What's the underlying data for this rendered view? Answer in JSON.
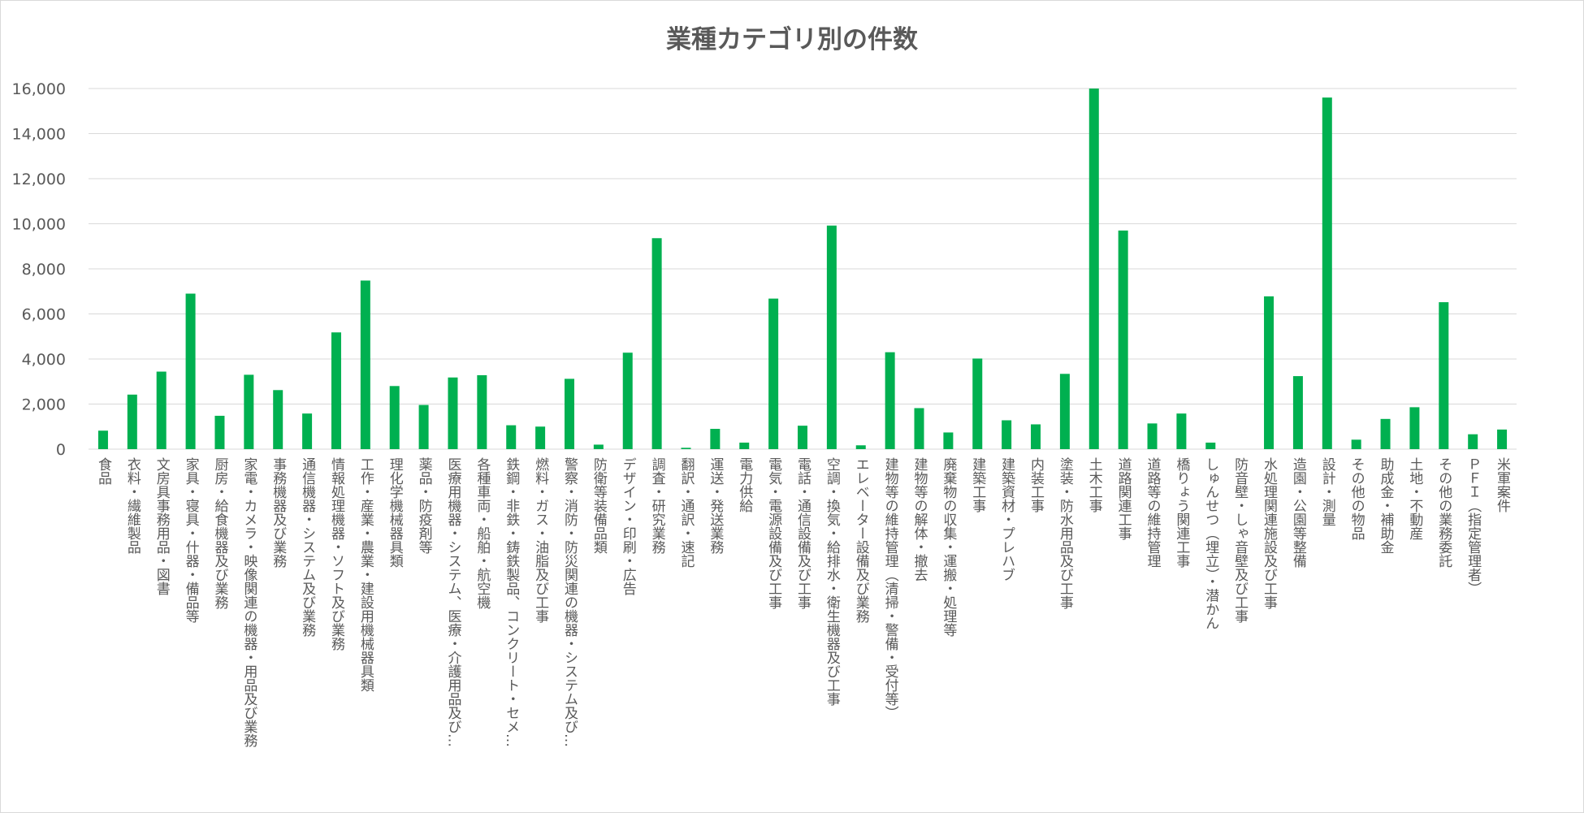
{
  "chart_data": {
    "type": "bar",
    "title": "業種カテゴリ別の件数",
    "xlabel": "",
    "ylabel": "",
    "ylim": [
      0,
      16000
    ],
    "yticks": [
      0,
      2000,
      4000,
      6000,
      8000,
      10000,
      12000,
      14000,
      16000
    ],
    "ytick_labels": [
      "0",
      "2,000",
      "4,000",
      "6,000",
      "8,000",
      "10,000",
      "12,000",
      "14,000",
      "16,000"
    ],
    "grid": true,
    "legend": "none",
    "bar_color": "#00b050",
    "categories": [
      "食品",
      "衣料・繊維製品",
      "文房具事務用品・図書",
      "家具・寝具・什器・備品等",
      "厨房・給食機器及び業務",
      "家電・カメラ・映像関連の機器・用品及び業務",
      "事務機器及び業務",
      "通信機器・システム及び業務",
      "情報処理機器・ソフト及び業務",
      "工作・産業・農業・建設用機械器具類",
      "理化学機械器具類",
      "薬品・防疫剤等",
      "医療用機器・システム、医療・介護用品及び…",
      "各種車両・船舶・航空機",
      "鉄鋼・非鉄・鋳鉄製品、コンクリート・セメ…",
      "燃料・ガス・油脂及び工事",
      "警察・消防・防災関連の機器・システム及び…",
      "防衛等装備品類",
      "デザイン・印刷・広告",
      "調査・研究業務",
      "翻訳・通訳・速記",
      "運送・発送業務",
      "電力供給",
      "電気・電源設備及び工事",
      "電話・通信設備及び工事",
      "空調・換気・給排水・衛生機器及び工事",
      "エレベーター設備及び業務",
      "建物等の維持管理（清掃・警備・受付等）",
      "建物等の解体・撤去",
      "廃棄物の収集・運搬・処理等",
      "建築工事",
      "建築資材・プレハブ",
      "内装工事",
      "塗装・防水用品及び工事",
      "土木工事",
      "道路関連工事",
      "道路等の維持管理",
      "橋りょう関連工事",
      "しゅんせつ（埋立）・潜かん",
      "防音壁・しゃ音壁及び工事",
      "水処理関連施設及び工事",
      "造園・公園等整備",
      "設計・測量",
      "その他の物品",
      "助成金・補助金",
      "土地・不動産",
      "その他の業務委託",
      "ＰＦＩ（指定管理者）",
      "米軍案件"
    ],
    "values": [
      820,
      2420,
      3440,
      6900,
      1480,
      3300,
      2620,
      1580,
      5180,
      7480,
      2800,
      1960,
      3180,
      3280,
      1060,
      1000,
      3120,
      200,
      4280,
      9360,
      60,
      900,
      290,
      6680,
      1040,
      9920,
      170,
      4300,
      1820,
      740,
      4020,
      1280,
      1100,
      3340,
      16000,
      9700,
      1140,
      1580,
      290,
      0,
      6780,
      3240,
      15600,
      420,
      1340,
      1860,
      6520,
      660,
      870
    ]
  }
}
